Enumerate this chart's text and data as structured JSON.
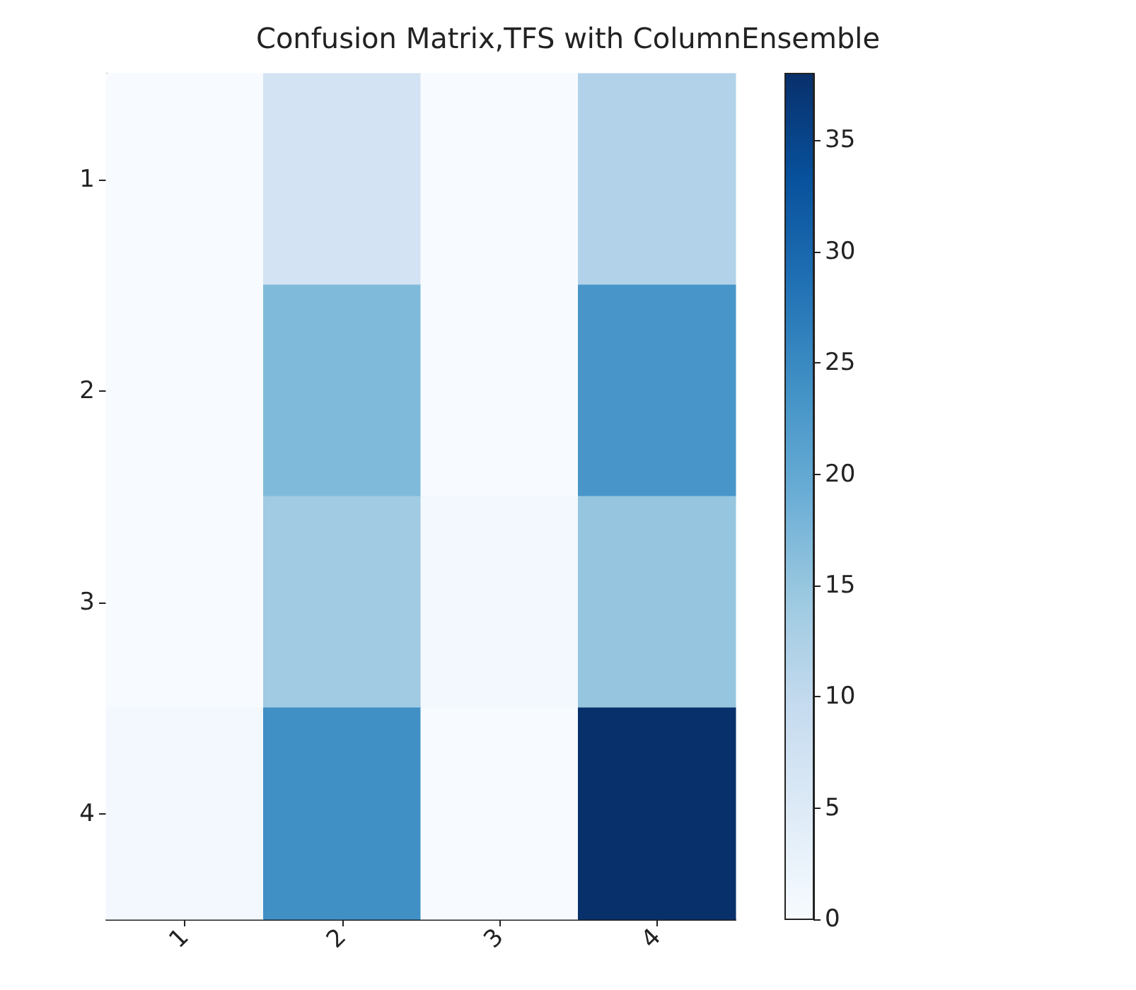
{
  "chart_data": {
    "type": "heatmap",
    "title": "Confusion Matrix,TFS with ColumnEnsemble",
    "categories": [
      "1",
      "2",
      "3",
      "4"
    ],
    "y_categories": [
      "1",
      "2",
      "3",
      "4"
    ],
    "cells": [
      [
        0,
        7,
        0,
        12
      ],
      [
        0,
        17,
        0,
        23
      ],
      [
        0,
        14,
        1,
        15
      ],
      [
        1,
        24,
        0,
        38
      ]
    ],
    "clim": [
      0,
      38
    ],
    "cticks": [
      0,
      5,
      10,
      15,
      20,
      25,
      30,
      35
    ]
  }
}
